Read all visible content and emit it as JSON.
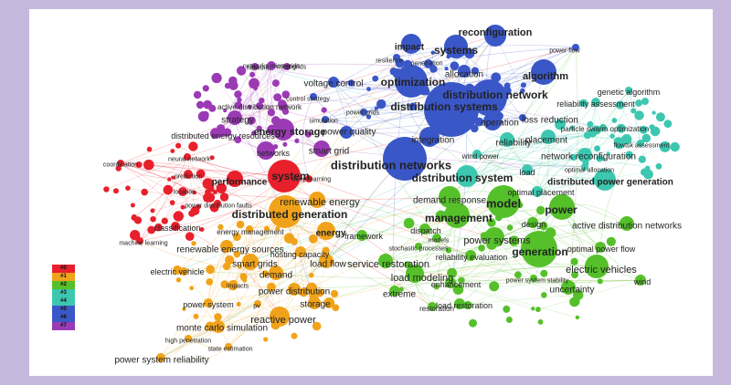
{
  "colors": {
    "c0": "#e8202c",
    "c1": "#f0a31a",
    "c2": "#55c02a",
    "c3": "#3dc7b0",
    "c4": "#3a57c8",
    "c5": "#9b3ab5",
    "frame": "#c6b9dd"
  },
  "legend": [
    {
      "label": "#0",
      "color": "#e8202c"
    },
    {
      "label": "#1",
      "color": "#f0a31a"
    },
    {
      "label": "#2",
      "color": "#55c02a"
    },
    {
      "label": "#3",
      "color": "#3dc7b0"
    },
    {
      "label": "#4",
      "color": "#3dc7b0"
    },
    {
      "label": "#5",
      "color": "#3a57c8"
    },
    {
      "label": "#6",
      "color": "#3a57c8"
    },
    {
      "label": "#7",
      "color": "#9b3ab5"
    }
  ],
  "nodes": [
    {
      "label": "reconfiguration",
      "cluster": "c4"
    },
    {
      "label": "power flow",
      "cluster": "c4"
    },
    {
      "label": "impact",
      "cluster": "c4"
    },
    {
      "label": "systems",
      "cluster": "c4"
    },
    {
      "label": "resilience",
      "cluster": "c4"
    },
    {
      "label": "penetration",
      "cluster": "c4"
    },
    {
      "label": "allocation",
      "cluster": "c4"
    },
    {
      "label": "algorithm",
      "cluster": "c4"
    },
    {
      "label": "optimization",
      "cluster": "c4"
    },
    {
      "label": "distribution network",
      "cluster": "c4"
    },
    {
      "label": "distribution systems",
      "cluster": "c4"
    },
    {
      "label": "operation",
      "cluster": "c4"
    },
    {
      "label": "integration",
      "cluster": "c4"
    },
    {
      "label": "distribution networks",
      "cluster": "c4"
    },
    {
      "label": "voltage control",
      "cluster": "c4"
    },
    {
      "label": "power quality",
      "cluster": "c4"
    },
    {
      "label": "power grids",
      "cluster": "c4"
    },
    {
      "label": "simulation",
      "cluster": "c4"
    },
    {
      "label": "control strategy",
      "cluster": "c4"
    },
    {
      "label": "loss reduction",
      "cluster": "c4"
    },
    {
      "label": "wind power",
      "cluster": "c3"
    },
    {
      "label": "load",
      "cluster": "c3"
    },
    {
      "label": "genetic algorithm",
      "cluster": "c3"
    },
    {
      "label": "reliability assessment",
      "cluster": "c3"
    },
    {
      "label": "particle swarm optimization",
      "cluster": "c3"
    },
    {
      "label": "placement",
      "cluster": "c3"
    },
    {
      "label": "reliability",
      "cluster": "c3"
    },
    {
      "label": "flowtsk assessment",
      "cluster": "c3"
    },
    {
      "label": "network reconfiguration",
      "cluster": "c3"
    },
    {
      "label": "optimal allocation",
      "cluster": "c3"
    },
    {
      "label": "distributed power generation",
      "cluster": "c3"
    },
    {
      "label": "distribution system",
      "cluster": "c3"
    },
    {
      "label": "optimal placement",
      "cluster": "c3"
    },
    {
      "label": "network",
      "cluster": "c5"
    },
    {
      "label": "microgrids",
      "cluster": "c5"
    },
    {
      "label": "networks microgrids",
      "cluster": "c5"
    },
    {
      "label": "active distribution network",
      "cluster": "c5"
    },
    {
      "label": "strategy",
      "cluster": "c5"
    },
    {
      "label": "energy storage",
      "cluster": "c5"
    },
    {
      "label": "distributed energy resources",
      "cluster": "c5"
    },
    {
      "label": "networks",
      "cluster": "c5"
    },
    {
      "label": "smart grid",
      "cluster": "c5"
    },
    {
      "label": "neural network",
      "cluster": "c0"
    },
    {
      "label": "coordination",
      "cluster": "c0"
    },
    {
      "label": "prediction",
      "cluster": "c0"
    },
    {
      "label": "location",
      "cluster": "c0"
    },
    {
      "label": "power distribution faults",
      "cluster": "c0"
    },
    {
      "label": "performance",
      "cluster": "c0"
    },
    {
      "label": "system",
      "cluster": "c0"
    },
    {
      "label": "deep learning",
      "cluster": "c0"
    },
    {
      "label": "classification",
      "cluster": "c0"
    },
    {
      "label": "machine learning",
      "cluster": "c0"
    },
    {
      "label": "distributed generation",
      "cluster": "c1"
    },
    {
      "label": "renewable energy",
      "cluster": "c1"
    },
    {
      "label": "energy management",
      "cluster": "c1"
    },
    {
      "label": "energy",
      "cluster": "c1"
    },
    {
      "label": "renewable energy sources",
      "cluster": "c1"
    },
    {
      "label": "hosting capacity",
      "cluster": "c1"
    },
    {
      "label": "smart grids",
      "cluster": "c1"
    },
    {
      "label": "electric vehicle",
      "cluster": "c1"
    },
    {
      "label": "demand",
      "cluster": "c1"
    },
    {
      "label": "load flow",
      "cluster": "c1"
    },
    {
      "label": "impacts",
      "cluster": "c1"
    },
    {
      "label": "power distribution",
      "cluster": "c1"
    },
    {
      "label": "power system",
      "cluster": "c1"
    },
    {
      "label": "pv",
      "cluster": "c1"
    },
    {
      "label": "storage",
      "cluster": "c1"
    },
    {
      "label": "reactive power",
      "cluster": "c1"
    },
    {
      "label": "monte carlo simulation",
      "cluster": "c1"
    },
    {
      "label": "high penetration",
      "cluster": "c1"
    },
    {
      "label": "state estimation",
      "cluster": "c1"
    },
    {
      "label": "power system reliability",
      "cluster": "c1"
    },
    {
      "label": "demand response",
      "cluster": "c2"
    },
    {
      "label": "model",
      "cluster": "c2"
    },
    {
      "label": "power",
      "cluster": "c2"
    },
    {
      "label": "management",
      "cluster": "c2"
    },
    {
      "label": "design",
      "cluster": "c2"
    },
    {
      "label": "active distribution networks",
      "cluster": "c2"
    },
    {
      "label": "dispatch",
      "cluster": "c2"
    },
    {
      "label": "models",
      "cluster": "c2"
    },
    {
      "label": "power systems",
      "cluster": "c2"
    },
    {
      "label": "framework",
      "cluster": "c2"
    },
    {
      "label": "stochastic processes",
      "cluster": "c2"
    },
    {
      "label": "generation",
      "cluster": "c2"
    },
    {
      "label": "optimal power flow",
      "cluster": "c2"
    },
    {
      "label": "reliability evaluation",
      "cluster": "c2"
    },
    {
      "label": "service restoration",
      "cluster": "c2"
    },
    {
      "label": "electric vehicles",
      "cluster": "c2"
    },
    {
      "label": "power system stability",
      "cluster": "c2"
    },
    {
      "label": "wind",
      "cluster": "c2"
    },
    {
      "label": "uncertainty",
      "cluster": "c2"
    },
    {
      "label": "load modeling",
      "cluster": "c2"
    },
    {
      "label": "enhancement",
      "cluster": "c2"
    },
    {
      "label": "extreme",
      "cluster": "c2"
    },
    {
      "label": "restoration",
      "cluster": "c2"
    },
    {
      "label": "load restoration",
      "cluster": "c2"
    }
  ]
}
